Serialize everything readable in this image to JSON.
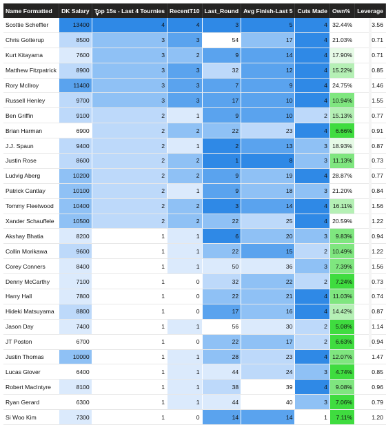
{
  "columns": [
    {
      "key": "name",
      "label": "Name Formatted"
    },
    {
      "key": "dk",
      "label": "DK Salary"
    },
    {
      "key": "top15",
      "label": "Top 15s - Last 4 Tournies"
    },
    {
      "key": "recent",
      "label": "RecentT10"
    },
    {
      "key": "last",
      "label": "Last_Round"
    },
    {
      "key": "avg",
      "label": "Avg Finish-Last 5"
    },
    {
      "key": "cuts",
      "label": "Cuts Made"
    },
    {
      "key": "own",
      "label": "Own%"
    },
    {
      "key": "lev",
      "label": "Leverage"
    }
  ],
  "sort_icon": "sort-descending-icon",
  "colors": {
    "header_bg": "#252423",
    "blue_scale": [
      "#ffffff",
      "#dbeafc",
      "#bdd9fa",
      "#8fc1f5",
      "#5aa3ee",
      "#2f89e6"
    ],
    "green_scale": [
      "#e6fae6",
      "#b5f0b5",
      "#7fe67f",
      "#3fdc3f"
    ]
  },
  "rows": [
    {
      "name": "Scottie Scheffler",
      "dk": "13400",
      "top15": "4",
      "recent": "4",
      "last": "3",
      "avg": "5",
      "cuts": "4",
      "own": "32.44%",
      "lev": "3.56"
    },
    {
      "name": "Chris Gotterup",
      "dk": "8500",
      "top15": "3",
      "recent": "3",
      "last": "54",
      "avg": "17",
      "cuts": "4",
      "own": "21.03%",
      "lev": "0.71"
    },
    {
      "name": "Kurt Kitayama",
      "dk": "7600",
      "top15": "3",
      "recent": "2",
      "last": "9",
      "avg": "14",
      "cuts": "4",
      "own": "17.90%",
      "lev": "0.71"
    },
    {
      "name": "Matthew Fitzpatrick",
      "dk": "8900",
      "top15": "3",
      "recent": "3",
      "last": "32",
      "avg": "12",
      "cuts": "4",
      "own": "15.22%",
      "lev": "0.85"
    },
    {
      "name": "Rory McIlroy",
      "dk": "11400",
      "top15": "3",
      "recent": "3",
      "last": "7",
      "avg": "9",
      "cuts": "4",
      "own": "24.75%",
      "lev": "1.46"
    },
    {
      "name": "Russell Henley",
      "dk": "9700",
      "top15": "3",
      "recent": "3",
      "last": "17",
      "avg": "10",
      "cuts": "4",
      "own": "10.94%",
      "lev": "1.55"
    },
    {
      "name": "Ben Griffin",
      "dk": "9100",
      "top15": "2",
      "recent": "1",
      "last": "9",
      "avg": "10",
      "cuts": "2",
      "own": "15.13%",
      "lev": "0.77"
    },
    {
      "name": "Brian Harman",
      "dk": "6900",
      "top15": "2",
      "recent": "2",
      "last": "22",
      "avg": "23",
      "cuts": "4",
      "own": "6.66%",
      "lev": "0.91"
    },
    {
      "name": "J.J. Spaun",
      "dk": "9400",
      "top15": "2",
      "recent": "1",
      "last": "2",
      "avg": "13",
      "cuts": "3",
      "own": "18.93%",
      "lev": "0.87"
    },
    {
      "name": "Justin Rose",
      "dk": "8600",
      "top15": "2",
      "recent": "2",
      "last": "1",
      "avg": "8",
      "cuts": "3",
      "own": "11.13%",
      "lev": "0.73"
    },
    {
      "name": "Ludvig Aberg",
      "dk": "10200",
      "top15": "2",
      "recent": "2",
      "last": "9",
      "avg": "19",
      "cuts": "4",
      "own": "28.87%",
      "lev": "0.77"
    },
    {
      "name": "Patrick Cantlay",
      "dk": "10100",
      "top15": "2",
      "recent": "1",
      "last": "9",
      "avg": "18",
      "cuts": "3",
      "own": "21.20%",
      "lev": "0.84"
    },
    {
      "name": "Tommy Fleetwood",
      "dk": "10400",
      "top15": "2",
      "recent": "2",
      "last": "3",
      "avg": "14",
      "cuts": "4",
      "own": "16.11%",
      "lev": "1.56"
    },
    {
      "name": "Xander Schauffele",
      "dk": "10500",
      "top15": "2",
      "recent": "2",
      "last": "22",
      "avg": "25",
      "cuts": "4",
      "own": "20.59%",
      "lev": "1.22"
    },
    {
      "name": "Akshay Bhatia",
      "dk": "8200",
      "top15": "1",
      "recent": "1",
      "last": "6",
      "avg": "20",
      "cuts": "3",
      "own": "9.83%",
      "lev": "0.94"
    },
    {
      "name": "Collin Morikawa",
      "dk": "9600",
      "top15": "1",
      "recent": "1",
      "last": "22",
      "avg": "15",
      "cuts": "2",
      "own": "10.49%",
      "lev": "1.22"
    },
    {
      "name": "Corey Conners",
      "dk": "8400",
      "top15": "1",
      "recent": "1",
      "last": "50",
      "avg": "36",
      "cuts": "3",
      "own": "7.39%",
      "lev": "1.56"
    },
    {
      "name": "Denny McCarthy",
      "dk": "7100",
      "top15": "1",
      "recent": "0",
      "last": "32",
      "avg": "22",
      "cuts": "2",
      "own": "7.24%",
      "lev": "0.73"
    },
    {
      "name": "Harry Hall",
      "dk": "7800",
      "top15": "1",
      "recent": "0",
      "last": "22",
      "avg": "21",
      "cuts": "4",
      "own": "11.03%",
      "lev": "0.74"
    },
    {
      "name": "Hideki Matsuyama",
      "dk": "8800",
      "top15": "1",
      "recent": "0",
      "last": "17",
      "avg": "16",
      "cuts": "4",
      "own": "14.42%",
      "lev": "0.87"
    },
    {
      "name": "Jason Day",
      "dk": "7400",
      "top15": "1",
      "recent": "1",
      "last": "56",
      "avg": "30",
      "cuts": "2",
      "own": "5.08%",
      "lev": "1.14"
    },
    {
      "name": "JT Poston",
      "dk": "6700",
      "top15": "1",
      "recent": "0",
      "last": "22",
      "avg": "17",
      "cuts": "2",
      "own": "6.63%",
      "lev": "0.94"
    },
    {
      "name": "Justin Thomas",
      "dk": "10000",
      "top15": "1",
      "recent": "1",
      "last": "28",
      "avg": "23",
      "cuts": "4",
      "own": "12.07%",
      "lev": "1.47"
    },
    {
      "name": "Lucas Glover",
      "dk": "6400",
      "top15": "1",
      "recent": "1",
      "last": "44",
      "avg": "24",
      "cuts": "3",
      "own": "4.74%",
      "lev": "0.85"
    },
    {
      "name": "Robert MacIntyre",
      "dk": "8100",
      "top15": "1",
      "recent": "1",
      "last": "38",
      "avg": "39",
      "cuts": "4",
      "own": "9.08%",
      "lev": "0.96"
    },
    {
      "name": "Ryan Gerard",
      "dk": "6300",
      "top15": "1",
      "recent": "1",
      "last": "44",
      "avg": "40",
      "cuts": "3",
      "own": "7.06%",
      "lev": "0.79"
    },
    {
      "name": "Si Woo Kim",
      "dk": "7300",
      "top15": "1",
      "recent": "0",
      "last": "14",
      "avg": "14",
      "cuts": "1",
      "own": "7.11%",
      "lev": "1.20"
    }
  ]
}
